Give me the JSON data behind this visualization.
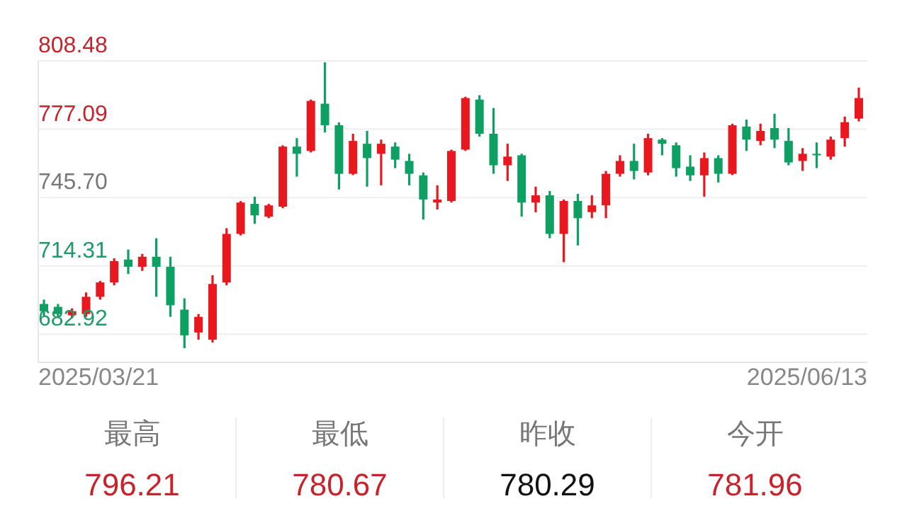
{
  "chart_data": [
    {
      "type": "candlestick",
      "annotations": [
        "2025/03/21",
        "2025/06/13"
      ],
      "categories": [
        null,
        null,
        null,
        null,
        null,
        null,
        null,
        null,
        null,
        null,
        null,
        null,
        null,
        null,
        null,
        null,
        null,
        null,
        null,
        null,
        null,
        null,
        null,
        null,
        null,
        null,
        null,
        null,
        null,
        null,
        null,
        null,
        null,
        null,
        null,
        null,
        null,
        null,
        null,
        null,
        null,
        null,
        null,
        null,
        null,
        null,
        null,
        null,
        null,
        null,
        null,
        null,
        null,
        null,
        null,
        null,
        null,
        null,
        null
      ],
      "ohlc": [
        [
          696.8,
          698.8,
          690.9,
          693.5
        ],
        [
          695.5,
          696.8,
          690.9,
          692.2
        ],
        [
          691.6,
          694.8,
          690.3,
          693.5
        ],
        [
          692.2,
          702.1,
          690.9,
          700.1
        ],
        [
          700.1,
          707.4,
          698.8,
          706.7
        ],
        [
          706.7,
          717.8,
          705.4,
          716.5
        ],
        [
          717.2,
          721.8,
          710.6,
          713.9
        ],
        [
          713.9,
          719.8,
          712.0,
          718.5
        ],
        [
          718.5,
          727.0,
          700.1,
          713.9
        ],
        [
          713.9,
          718.5,
          690.9,
          696.2
        ],
        [
          694.2,
          699.4,
          676.5,
          682.4
        ],
        [
          683.7,
          692.2,
          680.4,
          690.9
        ],
        [
          680.4,
          710.0,
          679.1,
          706.0
        ],
        [
          706.7,
          731.6,
          705.4,
          729.0
        ],
        [
          729.0,
          744.1,
          728.3,
          743.4
        ],
        [
          742.8,
          746.1,
          733.6,
          737.5
        ],
        [
          736.9,
          742.8,
          736.2,
          742.1
        ],
        [
          741.5,
          769.7,
          740.8,
          769.1
        ],
        [
          769.1,
          773.0,
          755.3,
          765.8
        ],
        [
          767.1,
          790.7,
          766.4,
          790.1
        ],
        [
          788.8,
          807.8,
          775.6,
          778.9
        ],
        [
          778.9,
          780.2,
          749.4,
          756.6
        ],
        [
          756.6,
          775.0,
          756.0,
          771.7
        ],
        [
          770.4,
          776.3,
          750.7,
          763.8
        ],
        [
          765.8,
          772.3,
          751.3,
          770.4
        ],
        [
          769.1,
          771.0,
          759.2,
          763.1
        ],
        [
          762.5,
          765.8,
          751.3,
          756.6
        ],
        [
          755.9,
          757.2,
          735.6,
          744.8
        ],
        [
          743.4,
          751.3,
          740.2,
          744.8
        ],
        [
          744.1,
          767.7,
          743.4,
          767.1
        ],
        [
          767.7,
          792.0,
          767.1,
          791.4
        ],
        [
          790.7,
          792.7,
          773.7,
          775.0
        ],
        [
          775.0,
          786.8,
          756.6,
          760.5
        ],
        [
          760.5,
          770.4,
          753.3,
          764.5
        ],
        [
          765.1,
          765.8,
          736.9,
          743.4
        ],
        [
          743.4,
          750.7,
          738.9,
          746.7
        ],
        [
          746.7,
          748.7,
          727.0,
          729.0
        ],
        [
          729.0,
          744.8,
          716.0,
          744.1
        ],
        [
          744.1,
          747.4,
          723.7,
          736.2
        ],
        [
          739.0,
          746.7,
          736.2,
          742.1
        ],
        [
          742.1,
          757.9,
          736.2,
          756.6
        ],
        [
          756.6,
          765.1,
          755.3,
          762.5
        ],
        [
          762.5,
          770.4,
          754.0,
          757.9
        ],
        [
          757.2,
          775.0,
          755.9,
          773.0
        ],
        [
          772.3,
          773.0,
          765.1,
          770.4
        ],
        [
          769.7,
          771.0,
          755.3,
          759.2
        ],
        [
          759.9,
          765.1,
          753.3,
          755.9
        ],
        [
          755.9,
          766.4,
          746.1,
          763.8
        ],
        [
          763.8,
          765.1,
          752.6,
          756.6
        ],
        [
          756.6,
          779.6,
          756.0,
          778.9
        ],
        [
          778.3,
          781.5,
          767.1,
          772.3
        ],
        [
          771.7,
          779.6,
          769.7,
          776.3
        ],
        [
          777.6,
          784.2,
          768.4,
          772.3
        ],
        [
          771.7,
          777.6,
          760.5,
          761.8
        ],
        [
          762.5,
          768.4,
          757.9,
          765.8
        ],
        [
          765.8,
          771.0,
          759.2,
          765.1
        ],
        [
          764.5,
          773.7,
          763.1,
          772.3
        ],
        [
          773.0,
          782.9,
          769.1,
          780.3
        ],
        [
          781.96,
          796.21,
          780.67,
          791.4
        ]
      ],
      "colors": [
        "#0e9f63",
        "#0e9f63",
        "#e9171e",
        "#e9171e",
        "#e9171e",
        "#e9171e",
        "#0e9f63",
        "#e9171e",
        "#0e9f63",
        "#0e9f63",
        "#0e9f63",
        "#e9171e",
        "#e9171e",
        "#e9171e",
        "#e9171e",
        "#0e9f63",
        "#e9171e",
        "#e9171e",
        "#0e9f63",
        "#e9171e",
        "#0e9f63",
        "#0e9f63",
        "#e9171e",
        "#0e9f63",
        "#e9171e",
        "#0e9f63",
        "#0e9f63",
        "#0e9f63",
        "#e9171e",
        "#e9171e",
        "#e9171e",
        "#0e9f63",
        "#0e9f63",
        "#e9171e",
        "#0e9f63",
        "#e9171e",
        "#0e9f63",
        "#e9171e",
        "#0e9f63",
        "#e9171e",
        "#e9171e",
        "#e9171e",
        "#0e9f63",
        "#e9171e",
        "#0e9f63",
        "#0e9f63",
        "#0e9f63",
        "#e9171e",
        "#0e9f63",
        "#e9171e",
        "#0e9f63",
        "#e9171e",
        "#0e9f63",
        "#0e9f63",
        "#e9171e",
        "#0e9f63",
        "#e9171e",
        "#e9171e",
        "#e9171e"
      ],
      "ylim": [
        670,
        808.48
      ],
      "yticks": [
        {
          "value": 682.92,
          "label": "682.92"
        },
        {
          "value": 714.31,
          "label": "714.31"
        },
        {
          "value": 745.7,
          "label": "745.70"
        },
        {
          "value": 777.09,
          "label": "777.09"
        },
        {
          "value": 808.48,
          "label": "808.48"
        }
      ],
      "grid": "y"
    },
    {
      "type": "other",
      "categories": [
        "最高",
        "最低",
        "昨收",
        "今开"
      ],
      "values": [
        796.21,
        780.67,
        780.29,
        781.96
      ],
      "data_labels": true,
      "colors": [
        "#c8232c",
        "#c8232c",
        "#111111",
        "#c8232c"
      ]
    }
  ]
}
